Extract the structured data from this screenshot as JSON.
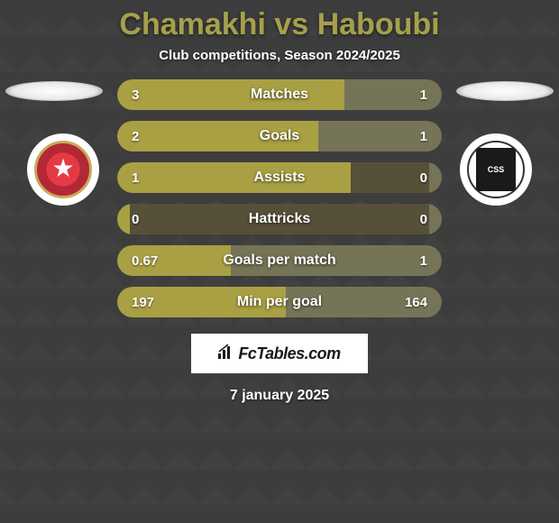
{
  "header": {
    "title": "Chamakhi vs Haboubi",
    "subtitle": "Club competitions, Season 2024/2025"
  },
  "teams": {
    "left": {
      "code": "ESS"
    },
    "right": {
      "code": "CSS"
    }
  },
  "stats": [
    {
      "label": "Matches",
      "left_value": "3",
      "right_value": "1",
      "left_pct": 70,
      "right_pct": 30
    },
    {
      "label": "Goals",
      "left_value": "2",
      "right_value": "1",
      "left_pct": 62,
      "right_pct": 38
    },
    {
      "label": "Assists",
      "left_value": "1",
      "right_value": "0",
      "left_pct": 72,
      "right_pct": 4
    },
    {
      "label": "Hattricks",
      "left_value": "0",
      "right_value": "0",
      "left_pct": 4,
      "right_pct": 4
    },
    {
      "label": "Goals per match",
      "left_value": "0.67",
      "right_value": "1",
      "left_pct": 35,
      "right_pct": 65
    },
    {
      "label": "Min per goal",
      "left_value": "197",
      "right_value": "164",
      "left_pct": 52,
      "right_pct": 48
    }
  ],
  "footer": {
    "watermark": "FcTables.com",
    "date": "7 january 2025"
  },
  "colors": {
    "title": "#a6a04c",
    "bar_left": "#a9a043",
    "bar_right": "#757456",
    "bar_bg": "#565038",
    "page_bg": "#3d3d3d"
  }
}
